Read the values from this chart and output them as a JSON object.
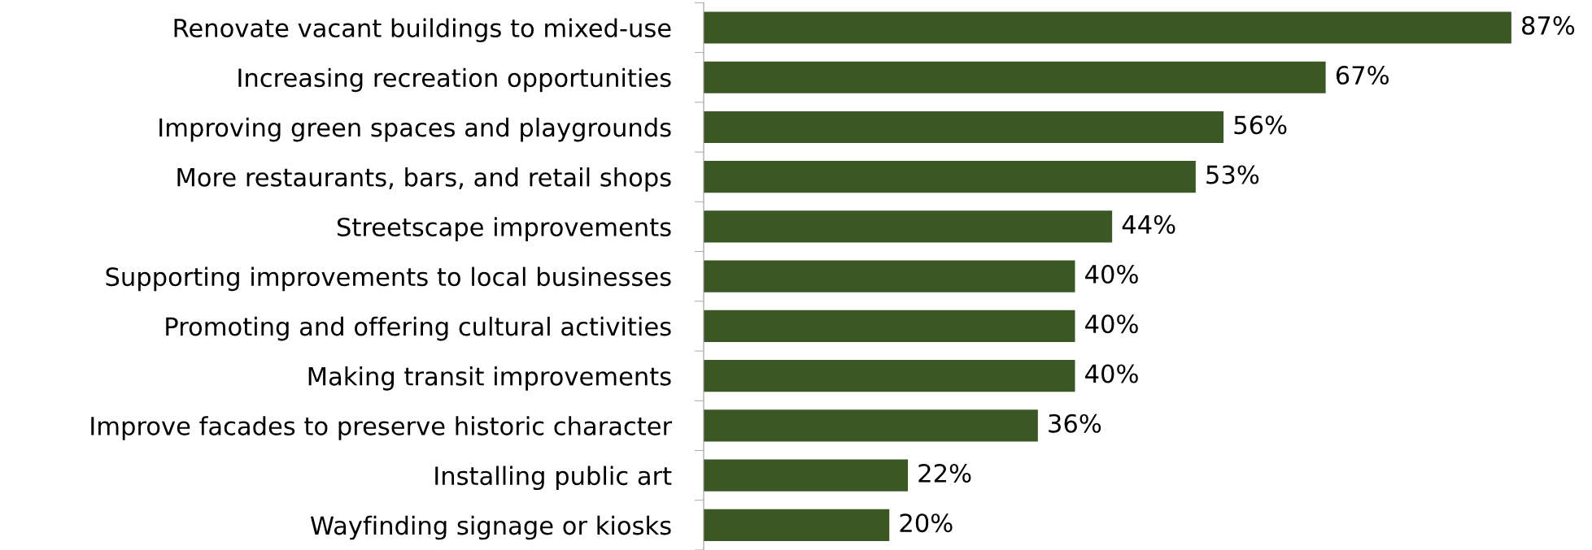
{
  "chart_data": {
    "type": "bar",
    "orientation": "horizontal",
    "categories": [
      "Renovate vacant buildings to mixed-use",
      "Increasing recreation opportunities",
      "Improving green spaces and playgrounds",
      "More restaurants, bars, and retail shops",
      "Streetscape improvements",
      "Supporting improvements to local businesses",
      "Promoting and offering cultural activities",
      "Making transit improvements",
      "Improve facades to preserve historic character",
      "Installing public art",
      "Wayfinding signage or kiosks"
    ],
    "values": [
      87,
      67,
      56,
      53,
      44,
      40,
      40,
      40,
      36,
      22,
      20
    ],
    "value_labels": [
      "87%",
      "67%",
      "56%",
      "53%",
      "44%",
      "40%",
      "40%",
      "40%",
      "36%",
      "22%",
      "20%"
    ],
    "color": "#3a5724",
    "grid": false,
    "legend": false
  }
}
